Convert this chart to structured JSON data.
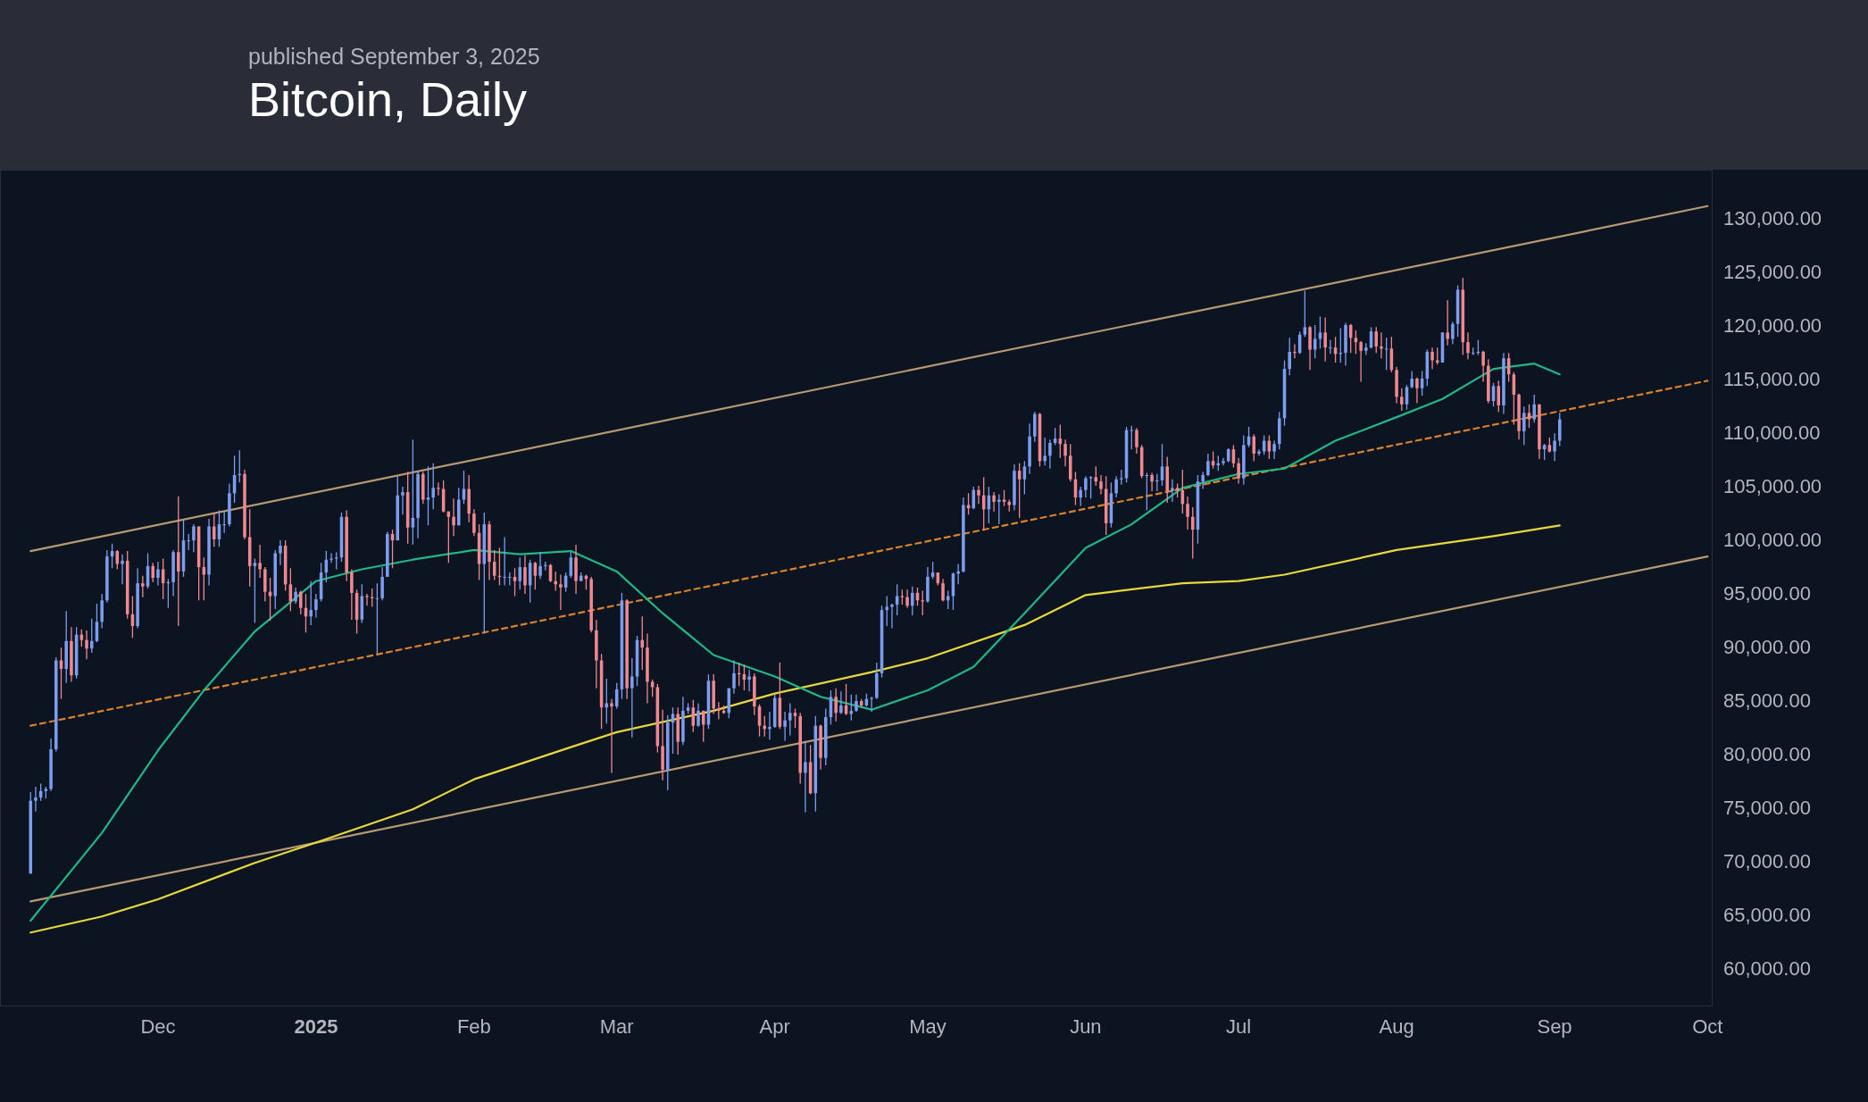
{
  "chart_data": {
    "type": "candlestick",
    "title": "Bitcoin, Daily",
    "subtitle": "published September 3, 2025",
    "xlim": [
      "2024-10-31",
      "2025-10-02"
    ],
    "xticks": [
      {
        "value": "2024-12-01",
        "label": "Dec"
      },
      {
        "value": "2025-01-01",
        "label": "2025"
      },
      {
        "value": "2025-02-01",
        "label": "Feb"
      },
      {
        "value": "2025-03-01",
        "label": "Mar"
      },
      {
        "value": "2025-04-01",
        "label": "Apr"
      },
      {
        "value": "2025-05-01",
        "label": "May"
      },
      {
        "value": "2025-06-01",
        "label": "Jun"
      },
      {
        "value": "2025-07-01",
        "label": "Jul"
      },
      {
        "value": "2025-08-01",
        "label": "Aug"
      },
      {
        "value": "2025-09-01",
        "label": "Sep"
      },
      {
        "value": "2025-10-01",
        "label": "Oct"
      }
    ],
    "ylim": [
      56400,
      134500
    ],
    "yticks": [
      {
        "value": 60000,
        "label": "60,000.00"
      },
      {
        "value": 65000,
        "label": "65,000.00"
      },
      {
        "value": 70000,
        "label": "70,000.00"
      },
      {
        "value": 75000,
        "label": "75,000.00"
      },
      {
        "value": 80000,
        "label": "80,000.00"
      },
      {
        "value": 85000,
        "label": "85,000.00"
      },
      {
        "value": 90000,
        "label": "90,000.00"
      },
      {
        "value": 95000,
        "label": "95,000.00"
      },
      {
        "value": 100000,
        "label": "100,000.00"
      },
      {
        "value": 105000,
        "label": "105,000.00"
      },
      {
        "value": 110000,
        "label": "110,000.00"
      },
      {
        "value": 115000,
        "label": "115,000.00"
      },
      {
        "value": 120000,
        "label": "120,000.00"
      },
      {
        "value": 125000,
        "label": "125,000.00"
      },
      {
        "value": 130000,
        "label": "130,000.00"
      }
    ],
    "colors": [
      "#7b9ef0",
      "#7b9ef0",
      "#7b9ef0",
      "#7b9ef0",
      "#7b9ef0",
      "#7b9ef0",
      "#f0898f",
      "#7b9ef0",
      "#f0898f",
      "#7b9ef0",
      "#f0898f",
      "#f0898f",
      "#7b9ef0",
      "#7b9ef0",
      "#7b9ef0",
      "#7b9ef0",
      "#7b9ef0",
      "#f0898f",
      "#7b9ef0",
      "#f0898f",
      "#f0898f",
      "#7b9ef0",
      "#f0898f",
      "#7b9ef0",
      "#f0898f",
      "#7b9ef0",
      "#f0898f",
      "#7b9ef0",
      "#7b9ef0",
      "#f0898f",
      "#7b9ef0",
      "#7b9ef0",
      "#7b9ef0",
      "#f0898f",
      "#f0898f",
      "#7b9ef0",
      "#f0898f",
      "#7b9ef0",
      "#7b9ef0",
      "#7b9ef0",
      "#7b9ef0",
      "#7b9ef0",
      "#f0898f",
      "#f0898f",
      "#7b9ef0",
      "#f0898f",
      "#f0898f",
      "#f0898f",
      "#7b9ef0",
      "#7b9ef0",
      "#f0898f",
      "#f0898f",
      "#7b9ef0",
      "#f0898f",
      "#f0898f",
      "#7b9ef0",
      "#7b9ef0",
      "#7b9ef0",
      "#7b9ef0",
      "#7b9ef0",
      "#7b9ef0",
      "#7b9ef0",
      "#f0898f",
      "#f0898f",
      "#f0898f",
      "#7b9ef0",
      "#f0898f",
      "#f0898f",
      "#7b9ef0",
      "#7b9ef0",
      "#7b9ef0",
      "#f0898f",
      "#7b9ef0",
      "#7b9ef0",
      "#f0898f",
      "#7b9ef0",
      "#7b9ef0",
      "#f0898f",
      "#7b9ef0",
      "#7b9ef0",
      "#f0898f",
      "#f0898f",
      "#f0898f",
      "#f0898f",
      "#7b9ef0",
      "#7b9ef0",
      "#f0898f",
      "#f0898f",
      "#f0898f",
      "#7b9ef0",
      "#f0898f",
      "#f0898f",
      "#f0898f",
      "#7b9ef0",
      "#7b9ef0",
      "#f0898f",
      "#7b9ef0",
      "#f0898f",
      "#7b9ef0",
      "#f0898f",
      "#7b9ef0",
      "#7b9ef0",
      "#f0898f",
      "#f0898f",
      "#f0898f",
      "#7b9ef0",
      "#7b9ef0",
      "#f0898f",
      "#7b9ef0",
      "#f0898f",
      "#f0898f",
      "#f0898f",
      "#f0898f",
      "#7b9ef0",
      "#f0898f",
      "#7b9ef0",
      "#7b9ef0",
      "#f0898f",
      "#7b9ef0",
      "#7b9ef0",
      "#f0898f",
      "#f0898f",
      "#f0898f",
      "#f0898f",
      "#f0898f",
      "#7b9ef0",
      "#7b9ef0",
      "#f0898f",
      "#7b9ef0",
      "#7b9ef0",
      "#f0898f",
      "#7b9ef0",
      "#f0898f",
      "#7b9ef0",
      "#f0898f",
      "#f0898f",
      "#f0898f",
      "#7b9ef0",
      "#7b9ef0",
      "#f0898f",
      "#f0898f",
      "#7b9ef0",
      "#f0898f",
      "#f0898f",
      "#f0898f",
      "#7b9ef0",
      "#7b9ef0",
      "#f0898f",
      "#7b9ef0",
      "#7b9ef0",
      "#f0898f",
      "#f0898f",
      "#7b9ef0",
      "#f0898f",
      "#7b9ef0",
      "#f0898f",
      "#7b9ef0",
      "#7b9ef0",
      "#f0898f",
      "#7b9ef0",
      "#f0898f",
      "#7b9ef0",
      "#7b9ef0",
      "#f0898f",
      "#7b9ef0",
      "#7b9ef0",
      "#7b9ef0",
      "#7b9ef0",
      "#7b9ef0",
      "#7b9ef0",
      "#7b9ef0",
      "#f0898f",
      "#f0898f",
      "#7b9ef0",
      "#f0898f",
      "#f0898f",
      "#7b9ef0",
      "#7b9ef0",
      "#f0898f",
      "#f0898f",
      "#7b9ef0",
      "#7b9ef0",
      "#7b9ef0",
      "#7b9ef0",
      "#f0898f",
      "#7b9ef0",
      "#f0898f",
      "#f0898f",
      "#7b9ef0",
      "#f0898f",
      "#7b9ef0",
      "#f0898f",
      "#f0898f",
      "#7b9ef0",
      "#f0898f",
      "#7b9ef0",
      "#7b9ef0",
      "#7b9ef0",
      "#f0898f",
      "#7b9ef0",
      "#7b9ef0",
      "#7b9ef0",
      "#f0898f",
      "#f0898f",
      "#f0898f",
      "#f0898f",
      "#7b9ef0",
      "#7b9ef0",
      "#7b9ef0",
      "#f0898f",
      "#f0898f",
      "#f0898f",
      "#7b9ef0",
      "#7b9ef0",
      "#7b9ef0",
      "#7b9ef0",
      "#7b9ef0",
      "#f0898f",
      "#f0898f",
      "#7b9ef0",
      "#f0898f",
      "#7b9ef0",
      "#7b9ef0",
      "#f0898f",
      "#7b9ef0",
      "#f0898f",
      "#f0898f",
      "#f0898f",
      "#f0898f",
      "#7b9ef0",
      "#7b9ef0",
      "#7b9ef0",
      "#f0898f",
      "#7b9ef0",
      "#7b9ef0",
      "#7b9ef0",
      "#f0898f",
      "#f0898f",
      "#7b9ef0",
      "#7b9ef0",
      "#f0898f",
      "#7b9ef0",
      "#7b9ef0",
      "#f0898f",
      "#7b9ef0",
      "#7b9ef0",
      "#7b9ef0",
      "#7b9ef0",
      "#f0898f",
      "#7b9ef0",
      "#7b9ef0",
      "#f0898f",
      "#7b9ef0",
      "#7b9ef0",
      "#f0898f",
      "#7b9ef0",
      "#f0898f",
      "#7b9ef0",
      "#7b9ef0",
      "#f0898f",
      "#f0898f",
      "#f0898f",
      "#7b9ef0",
      "#7b9ef0",
      "#f0898f",
      "#f0898f",
      "#7b9ef0",
      "#f0898f",
      "#f0898f",
      "#f0898f",
      "#7b9ef0",
      "#7b9ef0",
      "#f0898f",
      "#7b9ef0",
      "#7b9ef0",
      "#f0898f",
      "#f0898f",
      "#7b9ef0",
      "#f0898f",
      "#7b9ef0",
      "#7b9ef0",
      "#f0898f",
      "#f0898f",
      "#7b9ef0",
      "#7b9ef0",
      "#f0898f",
      "#f0898f",
      "#7b9ef0",
      "#f0898f",
      "#7b9ef0",
      "#f0898f",
      "#f0898f",
      "#f0898f",
      "#7b9ef0",
      "#f0898f",
      "#7b9ef0",
      "#f0898f",
      "#7b9ef0",
      "#f0898f",
      "#7b9ef0",
      "#7b9ef0"
    ],
    "x": [
      "2024-11-06",
      "2024-11-07",
      "2024-11-08",
      "2024-11-09",
      "2024-11-10",
      "2024-11-11",
      "2024-11-12",
      "2024-11-13",
      "2024-11-14",
      "2024-11-15",
      "2024-11-16",
      "2024-11-17",
      "2024-11-18",
      "2024-11-19",
      "2024-11-20",
      "2024-11-21",
      "2024-11-22",
      "2024-11-23",
      "2024-11-24",
      "2024-11-25",
      "2024-11-26",
      "2024-11-27",
      "2024-11-28",
      "2024-11-29",
      "2024-11-30",
      "2024-12-01",
      "2024-12-02",
      "2024-12-03",
      "2024-12-04",
      "2024-12-05",
      "2024-12-06",
      "2024-12-07",
      "2024-12-08",
      "2024-12-09",
      "2024-12-10",
      "2024-12-11",
      "2024-12-12",
      "2024-12-13",
      "2024-12-14",
      "2024-12-15",
      "2024-12-16",
      "2024-12-17",
      "2024-12-18",
      "2024-12-19",
      "2024-12-20",
      "2024-12-21",
      "2024-12-22",
      "2024-12-23",
      "2024-12-24",
      "2024-12-25",
      "2024-12-26",
      "2024-12-27",
      "2024-12-28",
      "2024-12-29",
      "2024-12-30",
      "2024-12-31",
      "2025-01-01",
      "2025-01-02",
      "2025-01-03",
      "2025-01-04",
      "2025-01-05",
      "2025-01-06",
      "2025-01-07",
      "2025-01-08",
      "2025-01-09",
      "2025-01-10",
      "2025-01-11",
      "2025-01-12",
      "2025-01-13",
      "2025-01-14",
      "2025-01-15",
      "2025-01-16",
      "2025-01-17",
      "2025-01-18",
      "2025-01-19",
      "2025-01-20",
      "2025-01-21",
      "2025-01-22",
      "2025-01-23",
      "2025-01-24",
      "2025-01-25",
      "2025-01-26",
      "2025-01-27",
      "2025-01-28",
      "2025-01-29",
      "2025-01-30",
      "2025-01-31",
      "2025-02-01",
      "2025-02-02",
      "2025-02-03",
      "2025-02-04",
      "2025-02-05",
      "2025-02-06",
      "2025-02-07",
      "2025-02-08",
      "2025-02-09",
      "2025-02-10",
      "2025-02-11",
      "2025-02-12",
      "2025-02-13",
      "2025-02-14",
      "2025-02-15",
      "2025-02-16",
      "2025-02-17",
      "2025-02-18",
      "2025-02-19",
      "2025-02-20",
      "2025-02-21",
      "2025-02-22",
      "2025-02-23",
      "2025-02-24",
      "2025-02-25",
      "2025-02-26",
      "2025-02-27",
      "2025-02-28",
      "2025-03-01",
      "2025-03-02",
      "2025-03-03",
      "2025-03-04",
      "2025-03-05",
      "2025-03-06",
      "2025-03-07",
      "2025-03-08",
      "2025-03-09",
      "2025-03-10",
      "2025-03-11",
      "2025-03-12",
      "2025-03-13",
      "2025-03-14",
      "2025-03-15",
      "2025-03-16",
      "2025-03-17",
      "2025-03-18",
      "2025-03-19",
      "2025-03-20",
      "2025-03-21",
      "2025-03-22",
      "2025-03-23",
      "2025-03-24",
      "2025-03-25",
      "2025-03-26",
      "2025-03-27",
      "2025-03-28",
      "2025-03-29",
      "2025-03-30",
      "2025-03-31",
      "2025-04-01",
      "2025-04-02",
      "2025-04-03",
      "2025-04-04",
      "2025-04-05",
      "2025-04-06",
      "2025-04-07",
      "2025-04-08",
      "2025-04-09",
      "2025-04-10",
      "2025-04-11",
      "2025-04-12",
      "2025-04-13",
      "2025-04-14",
      "2025-04-15",
      "2025-04-16",
      "2025-04-17",
      "2025-04-18",
      "2025-04-19",
      "2025-04-20",
      "2025-04-21",
      "2025-04-22",
      "2025-04-23",
      "2025-04-24",
      "2025-04-25",
      "2025-04-26",
      "2025-04-27",
      "2025-04-28",
      "2025-04-29",
      "2025-04-30",
      "2025-05-01",
      "2025-05-02",
      "2025-05-03",
      "2025-05-04",
      "2025-05-05",
      "2025-05-06",
      "2025-05-07",
      "2025-05-08",
      "2025-05-09",
      "2025-05-10",
      "2025-05-11",
      "2025-05-12",
      "2025-05-13",
      "2025-05-14",
      "2025-05-15",
      "2025-05-16",
      "2025-05-17",
      "2025-05-18",
      "2025-05-19",
      "2025-05-20",
      "2025-05-21",
      "2025-05-22",
      "2025-05-23",
      "2025-05-24",
      "2025-05-25",
      "2025-05-26",
      "2025-05-27",
      "2025-05-28",
      "2025-05-29",
      "2025-05-30",
      "2025-05-31",
      "2025-06-01",
      "2025-06-02",
      "2025-06-03",
      "2025-06-04",
      "2025-06-05",
      "2025-06-06",
      "2025-06-07",
      "2025-06-08",
      "2025-06-09",
      "2025-06-10",
      "2025-06-11",
      "2025-06-12",
      "2025-06-13",
      "2025-06-14",
      "2025-06-15",
      "2025-06-16",
      "2025-06-17",
      "2025-06-18",
      "2025-06-19",
      "2025-06-20",
      "2025-06-21",
      "2025-06-22",
      "2025-06-23",
      "2025-06-24",
      "2025-06-25",
      "2025-06-26",
      "2025-06-27",
      "2025-06-28",
      "2025-06-29",
      "2025-06-30",
      "2025-07-01",
      "2025-07-02",
      "2025-07-03",
      "2025-07-04",
      "2025-07-05",
      "2025-07-06",
      "2025-07-07",
      "2025-07-08",
      "2025-07-09",
      "2025-07-10",
      "2025-07-11",
      "2025-07-12",
      "2025-07-13",
      "2025-07-14",
      "2025-07-15",
      "2025-07-16",
      "2025-07-17",
      "2025-07-18",
      "2025-07-19",
      "2025-07-20",
      "2025-07-21",
      "2025-07-22",
      "2025-07-23",
      "2025-07-24",
      "2025-07-25",
      "2025-07-26",
      "2025-07-27",
      "2025-07-28",
      "2025-07-29",
      "2025-07-30",
      "2025-07-31",
      "2025-08-01",
      "2025-08-02",
      "2025-08-03",
      "2025-08-04",
      "2025-08-05",
      "2025-08-06",
      "2025-08-07",
      "2025-08-08",
      "2025-08-09",
      "2025-08-10",
      "2025-08-11",
      "2025-08-12",
      "2025-08-13",
      "2025-08-14",
      "2025-08-15",
      "2025-08-16",
      "2025-08-17",
      "2025-08-18",
      "2025-08-19",
      "2025-08-20",
      "2025-08-21",
      "2025-08-22",
      "2025-08-23",
      "2025-08-24",
      "2025-08-25",
      "2025-08-26",
      "2025-08-27",
      "2025-08-28",
      "2025-08-29",
      "2025-08-30",
      "2025-08-31",
      "2025-09-01",
      "2025-09-02"
    ],
    "ohlc": [
      [
        68800,
        76400,
        68800,
        75600
      ],
      [
        75600,
        76900,
        74600,
        75900
      ],
      [
        75900,
        77200,
        75600,
        76500
      ],
      [
        76500,
        76900,
        75800,
        76700
      ],
      [
        76700,
        81400,
        76500,
        80400
      ],
      [
        80400,
        89000,
        80200,
        88700
      ],
      [
        88700,
        89900,
        85100,
        87900
      ],
      [
        87900,
        93300,
        86600,
        90500
      ],
      [
        90500,
        91800,
        86700,
        87300
      ],
      [
        87300,
        91800,
        87000,
        91100
      ],
      [
        91100,
        91600,
        90000,
        90600
      ],
      [
        90600,
        91500,
        88800,
        89800
      ],
      [
        89800,
        92600,
        89400,
        90500
      ],
      [
        90500,
        94000,
        90400,
        92300
      ],
      [
        92300,
        94900,
        91700,
        94300
      ],
      [
        94300,
        99000,
        94100,
        98400
      ],
      [
        98400,
        99600,
        97300,
        98900
      ],
      [
        98900,
        99000,
        97200,
        97700
      ],
      [
        97700,
        98600,
        95800,
        98000
      ],
      [
        98000,
        98900,
        92600,
        93000
      ],
      [
        93000,
        94700,
        90800,
        91900
      ],
      [
        91900,
        97300,
        91700,
        95900
      ],
      [
        95900,
        96600,
        94600,
        95600
      ],
      [
        95600,
        98700,
        95400,
        97500
      ],
      [
        97500,
        97800,
        96000,
        96400
      ],
      [
        96400,
        97900,
        95700,
        97200
      ],
      [
        97200,
        98200,
        94400,
        95900
      ],
      [
        95900,
        96300,
        93600,
        96000
      ],
      [
        96000,
        99000,
        94700,
        98800
      ],
      [
        98800,
        104000,
        91900,
        97000
      ],
      [
        97000,
        101900,
        96500,
        99900
      ],
      [
        99900,
        100500,
        99000,
        99900
      ],
      [
        99900,
        101400,
        98800,
        101200
      ],
      [
        101200,
        101200,
        94300,
        97400
      ],
      [
        97400,
        98300,
        94300,
        96700
      ],
      [
        96700,
        101900,
        95700,
        101200
      ],
      [
        101200,
        102500,
        99300,
        100000
      ],
      [
        100000,
        102700,
        99300,
        101400
      ],
      [
        101400,
        102600,
        100600,
        101400
      ],
      [
        101400,
        105200,
        101200,
        104300
      ],
      [
        104300,
        107800,
        103400,
        106000
      ],
      [
        106000,
        108300,
        105300,
        106100
      ],
      [
        106100,
        106500,
        100000,
        100200
      ],
      [
        100200,
        102800,
        95600,
        97500
      ],
      [
        97500,
        98200,
        92200,
        97800
      ],
      [
        97800,
        99500,
        96400,
        97200
      ],
      [
        97200,
        97400,
        94200,
        95100
      ],
      [
        95100,
        96400,
        92400,
        94700
      ],
      [
        94700,
        99000,
        93500,
        98700
      ],
      [
        98700,
        99900,
        97600,
        99400
      ],
      [
        99400,
        99900,
        95200,
        95800
      ],
      [
        95800,
        97300,
        93300,
        94200
      ],
      [
        94200,
        95500,
        94000,
        95100
      ],
      [
        95100,
        95200,
        93000,
        93600
      ],
      [
        93600,
        94900,
        91300,
        92800
      ],
      [
        92800,
        96100,
        92000,
        93400
      ],
      [
        93400,
        94900,
        92700,
        94400
      ],
      [
        94400,
        97800,
        94200,
        96900
      ],
      [
        96900,
        98900,
        96000,
        98100
      ],
      [
        98100,
        98700,
        97800,
        98200
      ],
      [
        98200,
        98800,
        97200,
        98300
      ],
      [
        98300,
        102500,
        97900,
        102100
      ],
      [
        102100,
        102700,
        96100,
        96900
      ],
      [
        96900,
        97200,
        92500,
        95000
      ],
      [
        95000,
        95300,
        91200,
        92500
      ],
      [
        92500,
        95800,
        92200,
        94700
      ],
      [
        94700,
        94900,
        93800,
        94600
      ],
      [
        94600,
        95400,
        93700,
        94500
      ],
      [
        94500,
        95900,
        89300,
        94500
      ],
      [
        94500,
        97400,
        94300,
        96500
      ],
      [
        96500,
        100700,
        96500,
        100500
      ],
      [
        100500,
        100900,
        97300,
        99900
      ],
      [
        99900,
        105900,
        99900,
        104100
      ],
      [
        104100,
        104900,
        102300,
        104400
      ],
      [
        104400,
        106300,
        99600,
        101100
      ],
      [
        101100,
        109300,
        99500,
        102000
      ],
      [
        102000,
        106400,
        100100,
        106100
      ],
      [
        106100,
        106300,
        103300,
        103700
      ],
      [
        103700,
        106800,
        101300,
        103900
      ],
      [
        103900,
        107100,
        102800,
        104800
      ],
      [
        104800,
        105300,
        104100,
        104700
      ],
      [
        104700,
        105500,
        102500,
        102600
      ],
      [
        102600,
        102600,
        97800,
        102100
      ],
      [
        102100,
        103800,
        100300,
        101300
      ],
      [
        101300,
        104800,
        101300,
        103700
      ],
      [
        103700,
        106400,
        103300,
        104700
      ],
      [
        104700,
        106000,
        101600,
        102400
      ],
      [
        102400,
        102800,
        100300,
        100600
      ],
      [
        100600,
        101400,
        96200,
        97700
      ],
      [
        97700,
        102500,
        91200,
        101400
      ],
      [
        101400,
        101700,
        96200,
        97900
      ],
      [
        97900,
        99000,
        96200,
        96600
      ],
      [
        96600,
        99200,
        95700,
        96500
      ],
      [
        96500,
        100200,
        95700,
        96500
      ],
      [
        96500,
        96900,
        95700,
        96500
      ],
      [
        96500,
        97300,
        94700,
        96100
      ],
      [
        96100,
        98300,
        95300,
        97400
      ],
      [
        97400,
        98500,
        94900,
        95700
      ],
      [
        95700,
        98100,
        94100,
        97800
      ],
      [
        97800,
        97900,
        95300,
        96600
      ],
      [
        96600,
        98800,
        96300,
        97500
      ],
      [
        97500,
        97900,
        97100,
        97600
      ],
      [
        97600,
        97700,
        96000,
        96100
      ],
      [
        96100,
        97000,
        95200,
        95800
      ],
      [
        95800,
        96700,
        93400,
        95500
      ],
      [
        95500,
        96900,
        95100,
        96600
      ],
      [
        96600,
        98800,
        96400,
        98300
      ],
      [
        98300,
        99500,
        94900,
        96100
      ],
      [
        96100,
        96900,
        96100,
        96600
      ],
      [
        96600,
        96700,
        95300,
        96300
      ],
      [
        96300,
        96500,
        91300,
        91500
      ],
      [
        91500,
        92500,
        86100,
        88700
      ],
      [
        88700,
        89300,
        82300,
        84300
      ],
      [
        84300,
        87000,
        82800,
        84700
      ],
      [
        84700,
        85100,
        78200,
        84400
      ],
      [
        84400,
        86600,
        84200,
        86000
      ],
      [
        86000,
        95000,
        85100,
        94300
      ],
      [
        94300,
        94400,
        85100,
        86100
      ],
      [
        86100,
        88900,
        81500,
        87200
      ],
      [
        87200,
        91000,
        86300,
        90600
      ],
      [
        90600,
        92800,
        87800,
        89900
      ],
      [
        89900,
        91200,
        84700,
        86700
      ],
      [
        86700,
        86900,
        85300,
        86200
      ],
      [
        86200,
        86500,
        80100,
        80700
      ],
      [
        80700,
        84100,
        77500,
        78500
      ],
      [
        78500,
        83600,
        76600,
        82900
      ],
      [
        82900,
        84300,
        80000,
        83700
      ],
      [
        83700,
        84300,
        79900,
        81100
      ],
      [
        81100,
        85300,
        80800,
        84000
      ],
      [
        84000,
        84700,
        83700,
        84300
      ],
      [
        84300,
        85000,
        82000,
        82600
      ],
      [
        82600,
        84700,
        82500,
        84000
      ],
      [
        84000,
        84000,
        81100,
        82700
      ],
      [
        82700,
        87400,
        82300,
        86800
      ],
      [
        86800,
        87400,
        83700,
        84200
      ],
      [
        84200,
        84800,
        83200,
        84000
      ],
      [
        84000,
        84500,
        83700,
        83800
      ],
      [
        83800,
        86100,
        83300,
        86100
      ],
      [
        86100,
        88700,
        85600,
        87500
      ],
      [
        87500,
        88500,
        86300,
        87400
      ],
      [
        87400,
        88300,
        85900,
        86900
      ],
      [
        86900,
        87800,
        85800,
        87200
      ],
      [
        87200,
        87500,
        83600,
        84400
      ],
      [
        84400,
        84600,
        81600,
        82600
      ],
      [
        82600,
        83500,
        81600,
        82300
      ],
      [
        82300,
        83900,
        81300,
        82500
      ],
      [
        82500,
        85500,
        82400,
        85200
      ],
      [
        85200,
        88500,
        82300,
        82500
      ],
      [
        82500,
        83900,
        81200,
        83100
      ],
      [
        83100,
        84700,
        81700,
        83800
      ],
      [
        83800,
        84200,
        82400,
        83500
      ],
      [
        83500,
        83800,
        77200,
        78200
      ],
      [
        78200,
        81200,
        74500,
        79200
      ],
      [
        79200,
        80800,
        76200,
        76300
      ],
      [
        76300,
        83500,
        74600,
        82600
      ],
      [
        82600,
        82700,
        78500,
        79600
      ],
      [
        79600,
        84200,
        78900,
        83400
      ],
      [
        83400,
        85900,
        82700,
        85300
      ],
      [
        85300,
        86100,
        83000,
        83800
      ],
      [
        83800,
        85800,
        83700,
        84500
      ],
      [
        84500,
        86500,
        83600,
        83700
      ],
      [
        83700,
        85500,
        83100,
        84000
      ],
      [
        84000,
        85500,
        83900,
        84900
      ],
      [
        84900,
        85100,
        84300,
        84500
      ],
      [
        84500,
        85600,
        84400,
        85100
      ],
      [
        85100,
        85300,
        83900,
        85200
      ],
      [
        85200,
        88500,
        85100,
        87500
      ],
      [
        87500,
        93800,
        87100,
        93400
      ],
      [
        93400,
        94700,
        91900,
        93700
      ],
      [
        93700,
        94000,
        91700,
        93900
      ],
      [
        93900,
        95800,
        92900,
        94700
      ],
      [
        94700,
        95300,
        93900,
        94600
      ],
      [
        94600,
        95300,
        93600,
        93800
      ],
      [
        93800,
        95600,
        92900,
        95000
      ],
      [
        95000,
        95500,
        93800,
        94300
      ],
      [
        94300,
        95200,
        92900,
        94200
      ],
      [
        94200,
        97400,
        94100,
        96500
      ],
      [
        96500,
        97900,
        96300,
        96900
      ],
      [
        96900,
        96900,
        95700,
        95900
      ],
      [
        95900,
        96300,
        94200,
        94300
      ],
      [
        94300,
        95200,
        93500,
        94700
      ],
      [
        94700,
        96900,
        93400,
        96800
      ],
      [
        96800,
        97700,
        95800,
        97000
      ],
      [
        97000,
        103900,
        96900,
        103200
      ],
      [
        103200,
        104300,
        102300,
        102900
      ],
      [
        102900,
        104900,
        102800,
        104600
      ],
      [
        104600,
        105000,
        103300,
        104100
      ],
      [
        104100,
        105800,
        100800,
        102800
      ],
      [
        102800,
        104900,
        101500,
        104100
      ],
      [
        104100,
        104400,
        102600,
        103500
      ],
      [
        103500,
        104200,
        101400,
        103700
      ],
      [
        103700,
        104600,
        103100,
        103500
      ],
      [
        103500,
        103700,
        102600,
        103200
      ],
      [
        103200,
        107000,
        102700,
        106400
      ],
      [
        106400,
        107100,
        102000,
        105600
      ],
      [
        105600,
        107300,
        104200,
        106800
      ],
      [
        106800,
        110800,
        106100,
        109600
      ],
      [
        109600,
        111900,
        109100,
        111700
      ],
      [
        111700,
        111800,
        106800,
        107300
      ],
      [
        107300,
        109500,
        106900,
        107800
      ],
      [
        107800,
        109300,
        106600,
        109000
      ],
      [
        109000,
        110400,
        108800,
        109400
      ],
      [
        109400,
        110700,
        107600,
        108900
      ],
      [
        108900,
        109300,
        106800,
        107800
      ],
      [
        107800,
        108900,
        105400,
        105600
      ],
      [
        105600,
        106300,
        103200,
        103900
      ],
      [
        103900,
        104900,
        103100,
        104600
      ],
      [
        104600,
        105900,
        103900,
        105700
      ],
      [
        105700,
        105900,
        103800,
        105800
      ],
      [
        105800,
        106800,
        105000,
        105400
      ],
      [
        105400,
        106000,
        104200,
        104700
      ],
      [
        104700,
        105900,
        100400,
        101500
      ],
      [
        101500,
        105300,
        101100,
        104300
      ],
      [
        104300,
        105900,
        103900,
        105600
      ],
      [
        105600,
        106500,
        105100,
        105700
      ],
      [
        105700,
        110500,
        105300,
        110200
      ],
      [
        110200,
        110600,
        108400,
        110200
      ],
      [
        110200,
        110400,
        108000,
        108600
      ],
      [
        108600,
        108800,
        105700,
        105900
      ],
      [
        105900,
        106200,
        102700,
        106000
      ],
      [
        106000,
        106200,
        104500,
        105400
      ],
      [
        105400,
        106100,
        104500,
        105500
      ],
      [
        105500,
        108900,
        105000,
        106800
      ],
      [
        106800,
        107700,
        103400,
        104500
      ],
      [
        104500,
        105600,
        103500,
        104800
      ],
      [
        104800,
        105200,
        103900,
        104600
      ],
      [
        104600,
        106500,
        102400,
        103300
      ],
      [
        103300,
        104000,
        100900,
        102100
      ],
      [
        102100,
        103000,
        98200,
        100900
      ],
      [
        100900,
        106000,
        99600,
        105400
      ],
      [
        105400,
        106300,
        104700,
        106000
      ],
      [
        106000,
        108000,
        105900,
        107300
      ],
      [
        107300,
        108200,
        106600,
        106900
      ],
      [
        106900,
        107800,
        106400,
        107100
      ],
      [
        107100,
        107600,
        106900,
        107300
      ],
      [
        107300,
        108500,
        107200,
        108400
      ],
      [
        108400,
        108800,
        106700,
        107100
      ],
      [
        107100,
        107600,
        105200,
        105700
      ],
      [
        105700,
        109700,
        105100,
        108800
      ],
      [
        108800,
        110500,
        108600,
        109600
      ],
      [
        109600,
        109800,
        107300,
        108000
      ],
      [
        108000,
        108400,
        107800,
        108200
      ],
      [
        108200,
        109700,
        107900,
        109200
      ],
      [
        109200,
        109700,
        107500,
        108200
      ],
      [
        108200,
        109200,
        107500,
        108900
      ],
      [
        108900,
        111900,
        108400,
        111300
      ],
      [
        111300,
        116700,
        110600,
        115900
      ],
      [
        115900,
        118800,
        115300,
        117500
      ],
      [
        117500,
        118200,
        116900,
        117400
      ],
      [
        117400,
        119400,
        117300,
        119100
      ],
      [
        119100,
        123200,
        118900,
        119800
      ],
      [
        119800,
        119900,
        115800,
        117700
      ],
      [
        117700,
        120000,
        116900,
        118700
      ],
      [
        118700,
        120800,
        117800,
        119300
      ],
      [
        119300,
        120700,
        116600,
        117900
      ],
      [
        117900,
        118600,
        117300,
        117900
      ],
      [
        117900,
        118900,
        116500,
        117300
      ],
      [
        117300,
        119700,
        116500,
        117400
      ],
      [
        117400,
        120200,
        116200,
        120000
      ],
      [
        120000,
        120100,
        117400,
        118800
      ],
      [
        118800,
        119500,
        117300,
        118400
      ],
      [
        118400,
        118500,
        114700,
        117600
      ],
      [
        117600,
        118300,
        117200,
        117900
      ],
      [
        117900,
        119800,
        117800,
        119400
      ],
      [
        119400,
        119800,
        117400,
        118000
      ],
      [
        118000,
        119300,
        116900,
        117800
      ],
      [
        117800,
        118800,
        115800,
        117800
      ],
      [
        117800,
        118900,
        115600,
        115800
      ],
      [
        115800,
        116100,
        112700,
        113300
      ],
      [
        113300,
        114100,
        112000,
        112600
      ],
      [
        112600,
        114400,
        112100,
        114200
      ],
      [
        114200,
        115700,
        114100,
        115000
      ],
      [
        115000,
        115100,
        112700,
        114100
      ],
      [
        114100,
        115700,
        113400,
        115000
      ],
      [
        115000,
        117700,
        114300,
        117500
      ],
      [
        117500,
        117900,
        115900,
        116700
      ],
      [
        116700,
        117900,
        116300,
        116500
      ],
      [
        116500,
        119300,
        116500,
        119300
      ],
      [
        119300,
        122300,
        118100,
        118700
      ],
      [
        118700,
        120300,
        118200,
        120100
      ],
      [
        120100,
        123700,
        118900,
        123300
      ],
      [
        123300,
        124400,
        117200,
        118400
      ],
      [
        118400,
        119300,
        116800,
        117400
      ],
      [
        117400,
        117900,
        117200,
        117400
      ],
      [
        117400,
        118600,
        117200,
        117500
      ],
      [
        117500,
        117600,
        114700,
        116200
      ],
      [
        116200,
        116800,
        112700,
        112900
      ],
      [
        112900,
        114600,
        112400,
        114300
      ],
      [
        114300,
        114800,
        111900,
        112500
      ],
      [
        112500,
        117400,
        111700,
        116900
      ],
      [
        116900,
        117400,
        114700,
        115400
      ],
      [
        115400,
        115600,
        110700,
        113500
      ],
      [
        113500,
        113600,
        109300,
        110100
      ],
      [
        110100,
        112400,
        108800,
        111800
      ],
      [
        111800,
        112600,
        110400,
        111200
      ],
      [
        111200,
        113500,
        110900,
        112600
      ],
      [
        112600,
        112600,
        107500,
        108400
      ],
      [
        108400,
        108900,
        107400,
        108800
      ],
      [
        108800,
        109500,
        108100,
        108200
      ],
      [
        108200,
        109900,
        107300,
        109200
      ],
      [
        109200,
        111800,
        108700,
        111200
      ]
    ],
    "series": [
      {
        "type": "line",
        "color": "#b89a72",
        "line_style": "solid",
        "x": [
          "2024-11-06",
          "2025-10-01"
        ],
        "values": [
          98900,
          131100
        ]
      },
      {
        "type": "line",
        "color": "#d9822b",
        "line_style": "dashed",
        "x": [
          "2024-11-06",
          "2025-10-01"
        ],
        "values": [
          82600,
          114800
        ]
      },
      {
        "type": "line",
        "color": "#b89a72",
        "line_style": "solid",
        "x": [
          "2024-11-06",
          "2025-10-01"
        ],
        "values": [
          66200,
          98400
        ]
      },
      {
        "type": "line",
        "color": "#e8d83a",
        "line_style": "solid",
        "x": [
          "2024-11-06",
          "2024-11-20",
          "2024-12-01",
          "2024-12-20",
          "2025-01-01",
          "2025-01-20",
          "2025-02-01",
          "2025-02-20",
          "2025-03-01",
          "2025-03-20",
          "2025-04-01",
          "2025-04-20",
          "2025-05-01",
          "2025-05-20",
          "2025-06-01",
          "2025-06-20",
          "2025-07-01",
          "2025-07-10",
          "2025-08-01",
          "2025-08-20",
          "2025-09-02"
        ],
        "values": [
          63300,
          64800,
          66400,
          69800,
          71700,
          74800,
          77600,
          80600,
          82000,
          84000,
          85600,
          87600,
          88900,
          92000,
          94800,
          95900,
          96100,
          96700,
          99000,
          100300,
          101300
        ]
      },
      {
        "type": "line",
        "color": "#1fb886",
        "line_style": "solid",
        "x": [
          "2024-11-06",
          "2024-11-20",
          "2024-12-01",
          "2024-12-10",
          "2024-12-20",
          "2025-01-01",
          "2025-01-10",
          "2025-01-20",
          "2025-02-01",
          "2025-02-10",
          "2025-02-20",
          "2025-03-01",
          "2025-03-10",
          "2025-03-20",
          "2025-04-01",
          "2025-04-10",
          "2025-04-20",
          "2025-05-01",
          "2025-05-10",
          "2025-05-20",
          "2025-06-01",
          "2025-06-10",
          "2025-06-20",
          "2025-07-01",
          "2025-07-10",
          "2025-07-20",
          "2025-08-01",
          "2025-08-10",
          "2025-08-20",
          "2025-08-28",
          "2025-09-02"
        ],
        "values": [
          64400,
          72600,
          80300,
          85900,
          91400,
          96100,
          97200,
          98100,
          99000,
          98600,
          98900,
          97000,
          93100,
          89200,
          87200,
          85300,
          84100,
          85900,
          88100,
          93100,
          99200,
          101400,
          104800,
          106100,
          106600,
          109200,
          111400,
          113100,
          115900,
          116400,
          115400
        ]
      }
    ]
  }
}
